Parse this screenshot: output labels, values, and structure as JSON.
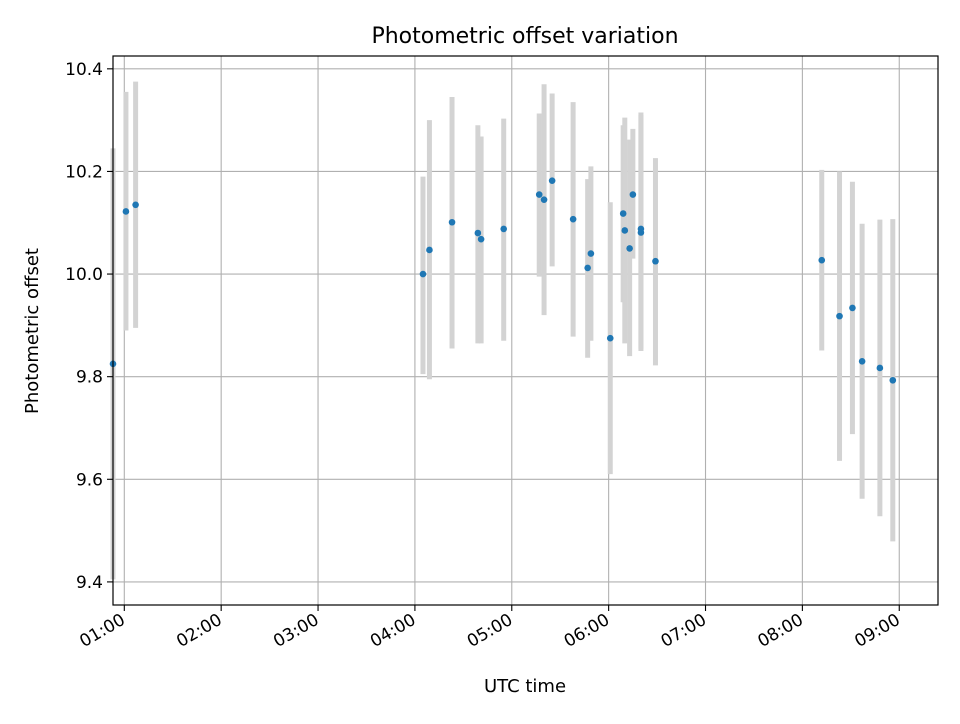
{
  "chart_data": {
    "type": "scatter",
    "title": "Photometric offset variation",
    "xlabel": "UTC time",
    "ylabel": "Photometric offset",
    "xlim": [
      "00:53",
      "09:24"
    ],
    "ylim": [
      9.355,
      10.425
    ],
    "x_ticks": [
      "01:00",
      "02:00",
      "03:00",
      "04:00",
      "05:00",
      "06:00",
      "07:00",
      "08:00",
      "09:00"
    ],
    "y_ticks": [
      9.4,
      9.6,
      9.8,
      10.0,
      10.2,
      10.4
    ],
    "y_tick_labels": [
      "9.4",
      "9.6",
      "9.8",
      "10.0",
      "10.2",
      "10.4"
    ],
    "grid": true,
    "legend": "none",
    "point_color": "#1f77b4",
    "errorbar_color": "#d3d3d3",
    "points": [
      {
        "t": "00:53",
        "y": 9.825,
        "lo": 9.405,
        "hi": 10.245
      },
      {
        "t": "01:01",
        "y": 10.122,
        "lo": 9.89,
        "hi": 10.355
      },
      {
        "t": "01:07",
        "y": 10.135,
        "lo": 9.895,
        "hi": 10.375
      },
      {
        "t": "04:05",
        "y": 10.0,
        "lo": 9.805,
        "hi": 10.19
      },
      {
        "t": "04:09",
        "y": 10.047,
        "lo": 9.795,
        "hi": 10.3
      },
      {
        "t": "04:23",
        "y": 10.101,
        "lo": 9.855,
        "hi": 10.345
      },
      {
        "t": "04:39",
        "y": 10.08,
        "lo": 9.865,
        "hi": 10.29
      },
      {
        "t": "04:41",
        "y": 10.068,
        "lo": 9.865,
        "hi": 10.268
      },
      {
        "t": "04:55",
        "y": 10.088,
        "lo": 9.87,
        "hi": 10.303
      },
      {
        "t": "05:17",
        "y": 10.155,
        "lo": 9.995,
        "hi": 10.313
      },
      {
        "t": "05:20",
        "y": 10.145,
        "lo": 9.92,
        "hi": 10.37
      },
      {
        "t": "05:25",
        "y": 10.182,
        "lo": 10.015,
        "hi": 10.352
      },
      {
        "t": "05:38",
        "y": 10.107,
        "lo": 9.878,
        "hi": 10.335
      },
      {
        "t": "05:47",
        "y": 10.012,
        "lo": 9.837,
        "hi": 10.185
      },
      {
        "t": "05:49",
        "y": 10.04,
        "lo": 9.87,
        "hi": 10.21
      },
      {
        "t": "06:01",
        "y": 9.875,
        "lo": 9.61,
        "hi": 10.14
      },
      {
        "t": "06:09",
        "y": 10.118,
        "lo": 9.945,
        "hi": 10.29
      },
      {
        "t": "06:10",
        "y": 10.085,
        "lo": 9.865,
        "hi": 10.305
      },
      {
        "t": "06:13",
        "y": 10.05,
        "lo": 9.84,
        "hi": 10.262
      },
      {
        "t": "06:15",
        "y": 10.155,
        "lo": 10.03,
        "hi": 10.283
      },
      {
        "t": "06:20",
        "y": 10.088,
        "lo": 9.855,
        "hi": 10.315
      },
      {
        "t": "06:20",
        "y": 10.081,
        "lo": 9.85,
        "hi": 10.31
      },
      {
        "t": "06:29",
        "y": 10.025,
        "lo": 9.822,
        "hi": 10.226
      },
      {
        "t": "08:12",
        "y": 10.027,
        "lo": 9.851,
        "hi": 10.203
      },
      {
        "t": "08:23",
        "y": 9.918,
        "lo": 9.636,
        "hi": 10.2
      },
      {
        "t": "08:31",
        "y": 9.934,
        "lo": 9.688,
        "hi": 10.18
      },
      {
        "t": "08:37",
        "y": 9.83,
        "lo": 9.562,
        "hi": 10.098
      },
      {
        "t": "08:48",
        "y": 9.817,
        "lo": 9.528,
        "hi": 10.106
      },
      {
        "t": "08:56",
        "y": 9.793,
        "lo": 9.479,
        "hi": 10.107
      }
    ]
  }
}
